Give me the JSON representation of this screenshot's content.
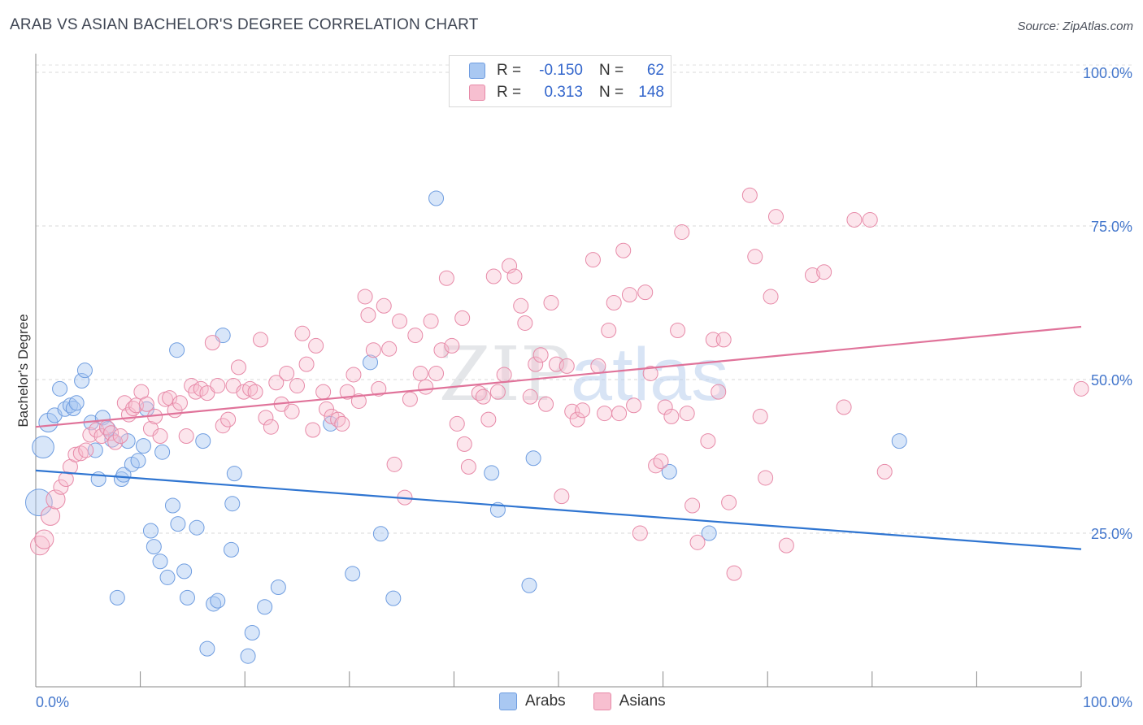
{
  "title": "ARAB VS ASIAN BACHELOR'S DEGREE CORRELATION CHART",
  "source": "Source: ZipAtlas.com",
  "watermark": "ZIPatlas",
  "legend": {
    "rows": [
      {
        "r_label": "R =",
        "r_value": "-0.150",
        "n_label": "N =",
        "n_value": "62",
        "color": "#a9c8f2",
        "border": "#6f9de0"
      },
      {
        "r_label": "R =",
        "r_value": "0.313",
        "n_label": "N =",
        "n_value": "148",
        "color": "#f7bfd0",
        "border": "#e78aa8"
      }
    ]
  },
  "bottom_legend": [
    {
      "label": "Arabs",
      "color": "#a9c8f2",
      "border": "#6f9de0"
    },
    {
      "label": "Asians",
      "color": "#f7bfd0",
      "border": "#e78aa8"
    }
  ],
  "chart_data": {
    "type": "scatter",
    "xlabel": "",
    "ylabel": "Bachelor's Degree",
    "xlim": [
      0,
      100
    ],
    "ylim": [
      0,
      104
    ],
    "x_tick_labels": [
      "0.0%",
      "100.0%"
    ],
    "y_ticks": [
      25,
      50,
      75,
      100
    ],
    "y_tick_labels": [
      "25.0%",
      "50.0%",
      "75.0%",
      "100.0%"
    ],
    "grid": true,
    "colors": {
      "arabs": "#2f75d1",
      "asians": "#e0739a",
      "arabs_fill": "#a9c8f2",
      "asians_fill": "#f7bfd0"
    },
    "series": [
      {
        "name": "Arabs",
        "trend": {
          "x0": 0,
          "y0": 35.2,
          "x1": 100,
          "y1": 22.4
        },
        "points": [
          [
            0.3,
            30,
            3
          ],
          [
            0.7,
            39,
            2
          ],
          [
            1.2,
            43,
            1.5
          ],
          [
            1.8,
            44.2,
            1
          ],
          [
            2.3,
            48.5,
            1
          ],
          [
            2.8,
            45.2,
            1
          ],
          [
            3.3,
            45.8,
            1
          ],
          [
            3.6,
            45.3,
            1
          ],
          [
            3.9,
            46.2,
            1
          ],
          [
            4.4,
            49.8,
            1
          ],
          [
            4.7,
            51.5,
            1
          ],
          [
            5.3,
            43,
            1
          ],
          [
            5.7,
            38.5,
            1
          ],
          [
            6.0,
            33.8,
            1
          ],
          [
            6.4,
            43.8,
            1
          ],
          [
            6.9,
            42,
            1
          ],
          [
            7.3,
            40.2,
            1
          ],
          [
            7.8,
            14.5,
            1
          ],
          [
            8.2,
            33.8,
            1
          ],
          [
            8.4,
            34.5,
            1
          ],
          [
            8.8,
            40,
            1
          ],
          [
            9.2,
            36.2,
            1
          ],
          [
            9.8,
            36.8,
            1
          ],
          [
            10.3,
            39.2,
            1
          ],
          [
            10.6,
            45.2,
            1
          ],
          [
            11.0,
            25.4,
            1
          ],
          [
            11.3,
            22.8,
            1
          ],
          [
            11.9,
            20.4,
            1
          ],
          [
            12.1,
            38.2,
            1
          ],
          [
            12.6,
            17.8,
            1
          ],
          [
            13.1,
            29.5,
            1
          ],
          [
            13.5,
            54.8,
            1
          ],
          [
            13.6,
            26.5,
            1
          ],
          [
            14.2,
            18.8,
            1
          ],
          [
            14.5,
            14.5,
            1
          ],
          [
            15.4,
            25.9,
            1
          ],
          [
            16.0,
            40,
            1
          ],
          [
            16.4,
            6.2,
            1
          ],
          [
            17.0,
            13.5,
            1
          ],
          [
            17.4,
            14,
            1
          ],
          [
            17.9,
            57.2,
            1
          ],
          [
            18.7,
            22.3,
            1
          ],
          [
            18.8,
            29.8,
            1
          ],
          [
            19.0,
            34.7,
            1
          ],
          [
            20.3,
            5,
            1
          ],
          [
            20.7,
            8.8,
            1
          ],
          [
            21.9,
            13,
            1
          ],
          [
            23.2,
            16.2,
            1
          ],
          [
            28.2,
            42.8,
            1
          ],
          [
            30.3,
            18.4,
            1
          ],
          [
            32.0,
            52.8,
            1
          ],
          [
            33.0,
            24.9,
            1
          ],
          [
            34.2,
            14.4,
            1
          ],
          [
            38.3,
            79.5,
            1
          ],
          [
            43.6,
            34.8,
            1
          ],
          [
            44.2,
            28.8,
            1
          ],
          [
            47.2,
            16.5,
            1
          ],
          [
            47.6,
            37.2,
            1
          ],
          [
            60.6,
            35,
            1
          ],
          [
            64.4,
            25,
            1
          ],
          [
            82.6,
            40,
            1
          ],
          [
            36,
            45,
            0
          ]
        ]
      },
      {
        "name": "Asians",
        "trend": {
          "x0": 0,
          "y0": 42.3,
          "x1": 100,
          "y1": 58.6
        },
        "points": [
          [
            0.4,
            23,
            1.5
          ],
          [
            0.8,
            24,
            1.5
          ],
          [
            1.4,
            27.8,
            1.5
          ],
          [
            1.9,
            30.5,
            1.5
          ],
          [
            2.4,
            32.5,
            1
          ],
          [
            2.9,
            33.8,
            1
          ],
          [
            3.3,
            35.8,
            1
          ],
          [
            3.8,
            37.8,
            1
          ],
          [
            4.3,
            38,
            1
          ],
          [
            4.8,
            38.5,
            1
          ],
          [
            5.2,
            41,
            1
          ],
          [
            5.8,
            41.8,
            1
          ],
          [
            6.3,
            40.8,
            1
          ],
          [
            6.8,
            42.2,
            1
          ],
          [
            7.2,
            41.3,
            1
          ],
          [
            7.6,
            39.8,
            1
          ],
          [
            8.1,
            40.8,
            1
          ],
          [
            8.5,
            46.2,
            1
          ],
          [
            8.9,
            44.3,
            1
          ],
          [
            9.3,
            45.3,
            1
          ],
          [
            9.6,
            45.8,
            1
          ],
          [
            10.1,
            48,
            1
          ],
          [
            10.6,
            46,
            1
          ],
          [
            11.0,
            42,
            1
          ],
          [
            11.4,
            44,
            1
          ],
          [
            11.9,
            40.8,
            1
          ],
          [
            12.4,
            46.8,
            1
          ],
          [
            12.8,
            47,
            1
          ],
          [
            13.3,
            45,
            1
          ],
          [
            13.8,
            46.2,
            1
          ],
          [
            14.4,
            40.8,
            1
          ],
          [
            14.9,
            49,
            1
          ],
          [
            15.3,
            48,
            1
          ],
          [
            15.8,
            48.5,
            1
          ],
          [
            16.4,
            47.8,
            1
          ],
          [
            16.9,
            56,
            1
          ],
          [
            17.4,
            49,
            1
          ],
          [
            17.9,
            42.5,
            1
          ],
          [
            18.4,
            43.5,
            1
          ],
          [
            18.9,
            49,
            1
          ],
          [
            19.4,
            52,
            1
          ],
          [
            19.9,
            48,
            1
          ],
          [
            20.5,
            48.5,
            1
          ],
          [
            21.0,
            48,
            1
          ],
          [
            21.5,
            56.5,
            1
          ],
          [
            22.0,
            43.8,
            1
          ],
          [
            22.5,
            42.3,
            1
          ],
          [
            23.0,
            49.5,
            1
          ],
          [
            23.5,
            46,
            1
          ],
          [
            24.0,
            51,
            1
          ],
          [
            24.5,
            44.8,
            1
          ],
          [
            25.0,
            49,
            1
          ],
          [
            25.5,
            57.5,
            1
          ],
          [
            25.9,
            52.5,
            1
          ],
          [
            26.5,
            41.8,
            1
          ],
          [
            26.8,
            55.5,
            1
          ],
          [
            27.5,
            48,
            1
          ],
          [
            27.8,
            45.2,
            1
          ],
          [
            28.3,
            44,
            1
          ],
          [
            28.9,
            43.5,
            1
          ],
          [
            29.3,
            42.8,
            1
          ],
          [
            29.8,
            48,
            1
          ],
          [
            30.4,
            50.8,
            1
          ],
          [
            30.9,
            46.5,
            1
          ],
          [
            31.5,
            63.5,
            1
          ],
          [
            31.8,
            60.5,
            1
          ],
          [
            32.3,
            54.8,
            1
          ],
          [
            32.8,
            48.5,
            1
          ],
          [
            33.3,
            62,
            1
          ],
          [
            33.8,
            55,
            1
          ],
          [
            34.3,
            36.2,
            1
          ],
          [
            34.8,
            59.5,
            1
          ],
          [
            35.3,
            30.8,
            1
          ],
          [
            35.8,
            46.8,
            1
          ],
          [
            36.3,
            57.2,
            1
          ],
          [
            36.8,
            51,
            1
          ],
          [
            37.3,
            48.8,
            1
          ],
          [
            37.8,
            59.5,
            1
          ],
          [
            38.3,
            51,
            1
          ],
          [
            38.8,
            54.8,
            1
          ],
          [
            39.3,
            66.5,
            1
          ],
          [
            39.8,
            55.5,
            1
          ],
          [
            40.3,
            42.8,
            1
          ],
          [
            40.8,
            60,
            1
          ],
          [
            41.0,
            39.5,
            1
          ],
          [
            41.4,
            35.8,
            1
          ],
          [
            42.4,
            47.8,
            1
          ],
          [
            42.8,
            47.2,
            1
          ],
          [
            43.3,
            43.5,
            1
          ],
          [
            43.8,
            66.8,
            1
          ],
          [
            44.2,
            48,
            1
          ],
          [
            44.8,
            50.8,
            1
          ],
          [
            45.3,
            68.5,
            1
          ],
          [
            45.8,
            66.8,
            1
          ],
          [
            46.4,
            62,
            1
          ],
          [
            46.8,
            59.2,
            1
          ],
          [
            47.3,
            47.2,
            1
          ],
          [
            47.8,
            52.5,
            1
          ],
          [
            48.3,
            54,
            1
          ],
          [
            48.8,
            46,
            1
          ],
          [
            49.3,
            62.5,
            1
          ],
          [
            49.8,
            52.5,
            1
          ],
          [
            50.3,
            31,
            1
          ],
          [
            50.8,
            52.2,
            1
          ],
          [
            51.3,
            44.8,
            1
          ],
          [
            51.8,
            43.5,
            1
          ],
          [
            52.3,
            45,
            1
          ],
          [
            53.3,
            69.5,
            1
          ],
          [
            53.8,
            52.2,
            1
          ],
          [
            54.4,
            44.5,
            1
          ],
          [
            54.8,
            58,
            1
          ],
          [
            55.3,
            62.5,
            1
          ],
          [
            55.8,
            44.5,
            1
          ],
          [
            56.2,
            71,
            1
          ],
          [
            56.8,
            63.8,
            1
          ],
          [
            57.2,
            45.8,
            1
          ],
          [
            57.8,
            25,
            1
          ],
          [
            58.3,
            64.2,
            1
          ],
          [
            58.8,
            51,
            1
          ],
          [
            59.3,
            36,
            1
          ],
          [
            59.8,
            36.7,
            1
          ],
          [
            60.2,
            45.5,
            1
          ],
          [
            60.8,
            44,
            1
          ],
          [
            61.4,
            58,
            1
          ],
          [
            61.8,
            74,
            1
          ],
          [
            62.3,
            44.5,
            1
          ],
          [
            62.8,
            29.5,
            1
          ],
          [
            63.3,
            23.5,
            1
          ],
          [
            64.3,
            40,
            1
          ],
          [
            64.8,
            56.5,
            1
          ],
          [
            65.3,
            48,
            1
          ],
          [
            65.8,
            56.5,
            1
          ],
          [
            66.3,
            30,
            1
          ],
          [
            66.8,
            18.5,
            1
          ],
          [
            68.3,
            80,
            1
          ],
          [
            68.8,
            70,
            1
          ],
          [
            69.3,
            44,
            1
          ],
          [
            69.8,
            34,
            1
          ],
          [
            70.3,
            63.5,
            1
          ],
          [
            70.8,
            76.5,
            1
          ],
          [
            71.8,
            23,
            1
          ],
          [
            74.3,
            67,
            1
          ],
          [
            75.4,
            67.5,
            1
          ],
          [
            77.3,
            45.5,
            1
          ],
          [
            78.3,
            76,
            1
          ],
          [
            79.8,
            76,
            1
          ],
          [
            81.2,
            35,
            1
          ],
          [
            100,
            48.5,
            1
          ]
        ]
      }
    ]
  }
}
